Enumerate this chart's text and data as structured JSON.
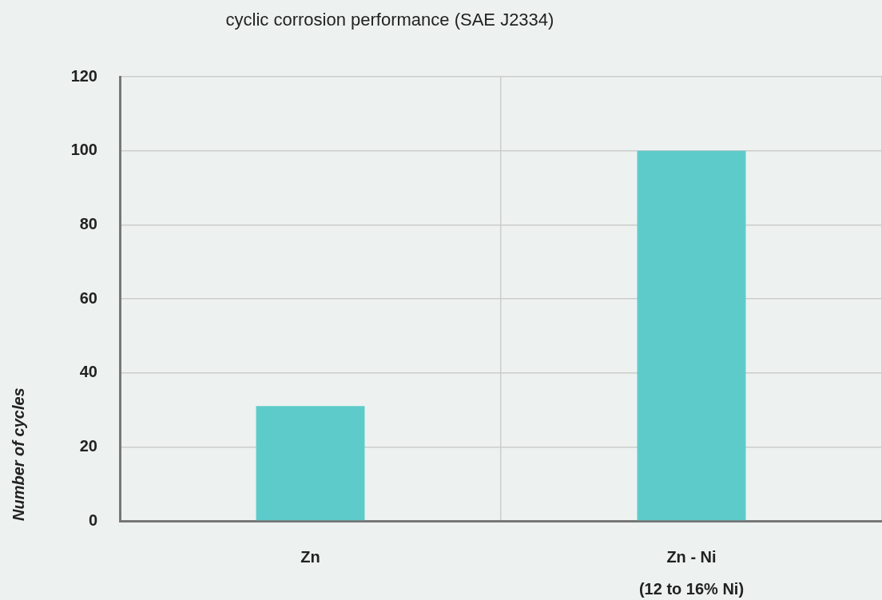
{
  "chart_data": {
    "type": "bar",
    "title": "cyclic corrosion performance (SAE J2334)",
    "ylabel": "Number of cycles",
    "categories": [
      "Zn",
      "Zn - Ni\n(12 to 16% Ni)"
    ],
    "values": [
      31,
      100
    ],
    "color": "#5ecbcb",
    "ylim": [
      0,
      120
    ],
    "yticks": [
      0,
      20,
      40,
      60,
      80,
      100,
      120
    ],
    "grid": true
  }
}
